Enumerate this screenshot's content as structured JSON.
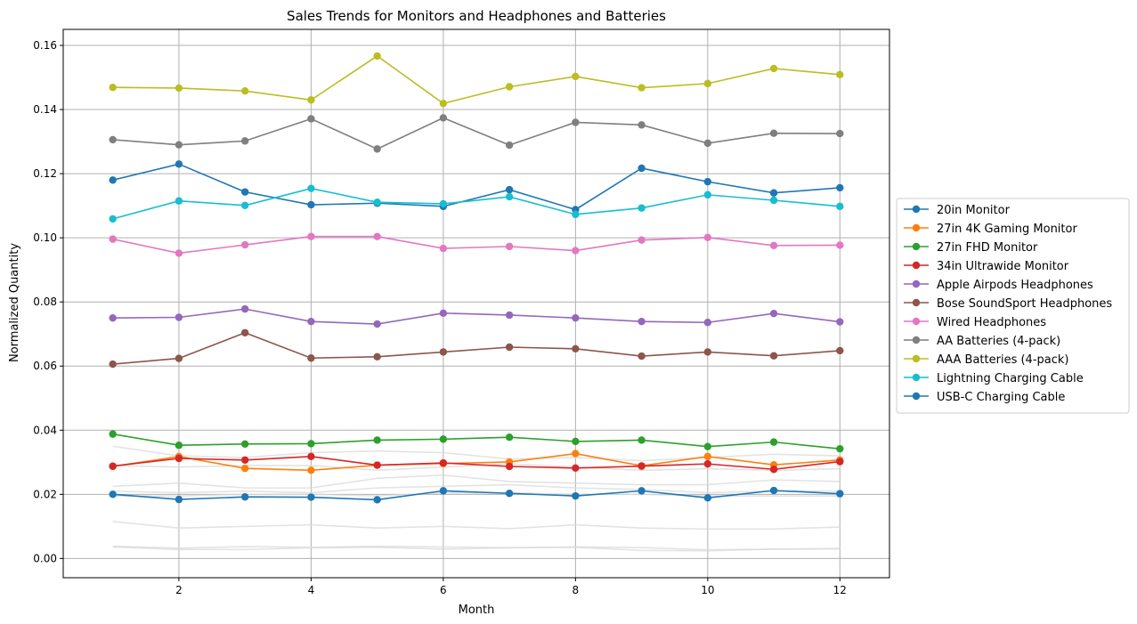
{
  "chart_data": {
    "type": "line",
    "title": "Sales Trends for Monitors and Headphones and Batteries",
    "xlabel": "Month",
    "ylabel": "Normalized Quantity",
    "xlim": [
      0.25,
      12.75
    ],
    "ylim": [
      -0.006,
      0.165
    ],
    "x_ticks": [
      2,
      4,
      6,
      8,
      10,
      12
    ],
    "y_ticks": [
      0.0,
      0.02,
      0.04,
      0.06,
      0.08,
      0.1,
      0.12,
      0.14,
      0.16
    ],
    "y_tick_labels": [
      "0.00",
      "0.02",
      "0.04",
      "0.06",
      "0.08",
      "0.10",
      "0.12",
      "0.14",
      "0.16"
    ],
    "grid": true,
    "legend_position": "center-right-outside",
    "x": [
      1,
      2,
      3,
      4,
      5,
      6,
      7,
      8,
      9,
      10,
      11,
      12
    ],
    "series": [
      {
        "name": "20in Monitor",
        "color": "#1f77b4",
        "values": [
          0.118,
          0.123,
          0.1143,
          0.1103,
          0.1108,
          0.1098,
          0.115,
          0.1088,
          0.1217,
          0.1175,
          0.114,
          0.1156
        ]
      },
      {
        "name": "27in 4K Gaming Monitor",
        "color": "#ff7f0e",
        "values": [
          0.0287,
          0.0318,
          0.0281,
          0.0275,
          0.0291,
          0.0296,
          0.0301,
          0.0327,
          0.0289,
          0.0318,
          0.0292,
          0.0307
        ]
      },
      {
        "name": "27in FHD Monitor",
        "color": "#2ca02c",
        "values": [
          0.0388,
          0.0353,
          0.0357,
          0.0358,
          0.0369,
          0.0372,
          0.0378,
          0.0365,
          0.0369,
          0.0349,
          0.0363,
          0.0342
        ]
      },
      {
        "name": "34in Ultrawide Monitor",
        "color": "#d62728",
        "values": [
          0.0288,
          0.0312,
          0.0307,
          0.0318,
          0.0291,
          0.0298,
          0.0287,
          0.0282,
          0.0288,
          0.0295,
          0.0278,
          0.0302
        ]
      },
      {
        "name": "Apple Airpods Headphones",
        "color": "#9467bd",
        "values": [
          0.075,
          0.0752,
          0.0778,
          0.0739,
          0.0731,
          0.0765,
          0.0759,
          0.075,
          0.0739,
          0.0736,
          0.0764,
          0.0738
        ]
      },
      {
        "name": "Bose SoundSport Headphones",
        "color": "#8c564b",
        "values": [
          0.0606,
          0.0624,
          0.0704,
          0.0625,
          0.0629,
          0.0644,
          0.0659,
          0.0654,
          0.0631,
          0.0644,
          0.0632,
          0.0648
        ]
      },
      {
        "name": "Wired Headphones",
        "color": "#e377c2",
        "values": [
          0.0996,
          0.0952,
          0.0978,
          0.1004,
          0.1004,
          0.0967,
          0.0973,
          0.096,
          0.0993,
          0.1001,
          0.0976,
          0.0977
        ]
      },
      {
        "name": "AA Batteries (4-pack)",
        "color": "#7f7f7f",
        "values": [
          0.1306,
          0.129,
          0.1302,
          0.1371,
          0.1277,
          0.1374,
          0.1289,
          0.136,
          0.1352,
          0.1295,
          0.1326,
          0.1325
        ]
      },
      {
        "name": "AAA Batteries (4-pack)",
        "color": "#bcbd22",
        "values": [
          0.1469,
          0.1467,
          0.1458,
          0.143,
          0.1567,
          0.1419,
          0.1471,
          0.1503,
          0.1468,
          0.1481,
          0.1528,
          0.1509
        ]
      },
      {
        "name": "Lightning Charging Cable",
        "color": "#17becf",
        "values": [
          0.1059,
          0.1115,
          0.1101,
          0.1154,
          0.1111,
          0.1106,
          0.1128,
          0.1073,
          0.1093,
          0.1134,
          0.1117,
          0.1098
        ]
      },
      {
        "name": "USB-C Charging Cable",
        "color": "#1f77b4",
        "values": [
          0.02,
          0.0184,
          0.0192,
          0.0191,
          0.0183,
          0.0211,
          0.0203,
          0.0195,
          0.0211,
          0.0189,
          0.0212,
          0.0202
        ]
      }
    ],
    "background_series": [
      {
        "values": [
          0.035,
          0.032,
          0.0315,
          0.033,
          0.0335,
          0.033,
          0.031,
          0.0315,
          0.0305,
          0.0315,
          0.0325,
          0.032
        ]
      },
      {
        "values": [
          0.029,
          0.0285,
          0.029,
          0.029,
          0.0275,
          0.0285,
          0.0295,
          0.0285,
          0.0275,
          0.028,
          0.0275,
          0.028
        ]
      },
      {
        "values": [
          0.0225,
          0.0235,
          0.022,
          0.022,
          0.025,
          0.026,
          0.024,
          0.0235,
          0.023,
          0.023,
          0.0245,
          0.024
        ]
      },
      {
        "values": [
          0.021,
          0.0205,
          0.021,
          0.0205,
          0.022,
          0.0225,
          0.023,
          0.022,
          0.0215,
          0.0205,
          0.021,
          0.021
        ]
      },
      {
        "values": [
          0.0195,
          0.0195,
          0.02,
          0.02,
          0.0195,
          0.0205,
          0.0205,
          0.02,
          0.02,
          0.0195,
          0.0195,
          0.0195
        ]
      },
      {
        "values": [
          0.0115,
          0.0095,
          0.01,
          0.0105,
          0.0095,
          0.01,
          0.0093,
          0.0105,
          0.0095,
          0.0092,
          0.0092,
          0.0098
        ]
      },
      {
        "values": [
          0.0038,
          0.0032,
          0.0037,
          0.0035,
          0.0038,
          0.0036,
          0.0034,
          0.0036,
          0.0034,
          0.0027,
          0.0029,
          0.003
        ]
      },
      {
        "values": [
          0.0036,
          0.0028,
          0.0028,
          0.0033,
          0.0035,
          0.0029,
          0.0033,
          0.0035,
          0.0025,
          0.0024,
          0.0029,
          0.0031
        ]
      }
    ]
  }
}
